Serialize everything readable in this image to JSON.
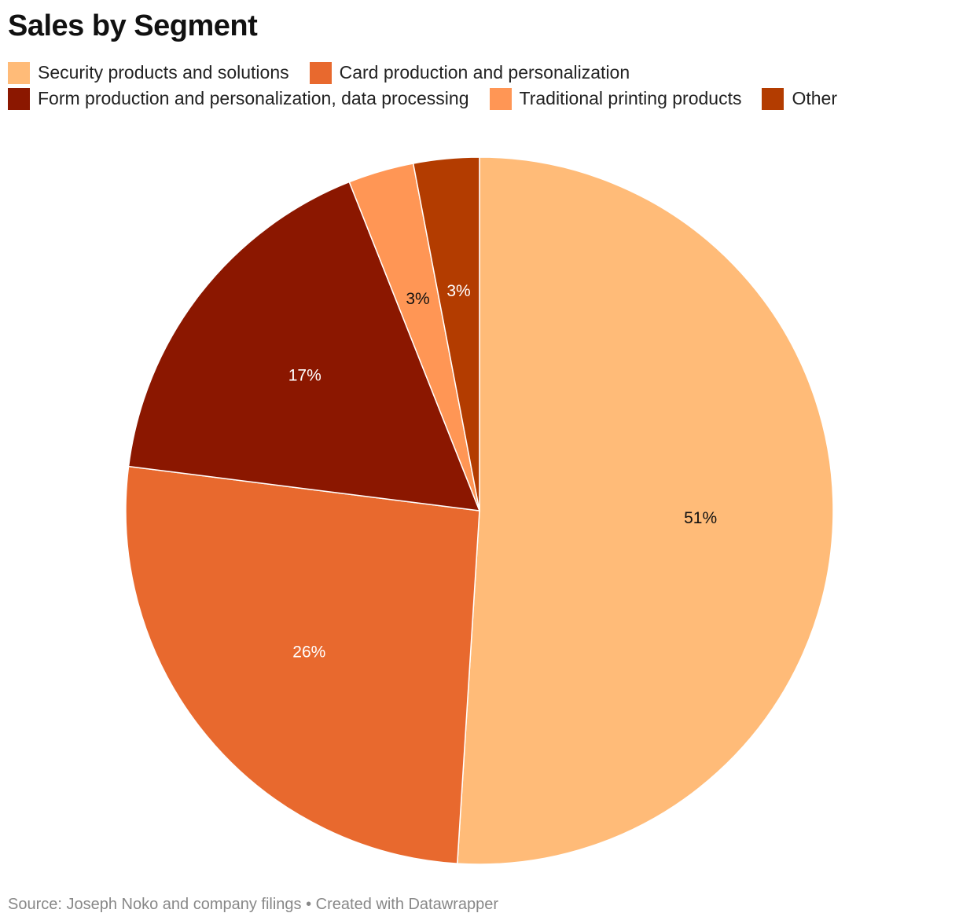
{
  "title": "Sales by Segment",
  "footer": "Source: Joseph Noko and company filings • Created with Datawrapper",
  "chart_data": {
    "type": "pie",
    "title": "Sales by Segment",
    "start": "top",
    "direction": "clockwise",
    "legend_position": "top",
    "slices": [
      {
        "label": "Security products and solutions",
        "value": 51,
        "display": "51%",
        "color": "#FFBB78",
        "text_color": "#111111"
      },
      {
        "label": "Card production and personalization",
        "value": 26,
        "display": "26%",
        "color": "#E8692E",
        "text_color": "#FFFFFF"
      },
      {
        "label": "Form production and personalization, data processing",
        "value": 17,
        "display": "17%",
        "color": "#8B1700",
        "text_color": "#FFFFFF"
      },
      {
        "label": "Traditional printing products",
        "value": 3,
        "display": "3%",
        "color": "#FF9655",
        "text_color": "#111111"
      },
      {
        "label": "Other",
        "value": 3,
        "display": "3%",
        "color": "#B33C00",
        "text_color": "#FFFFFF"
      }
    ]
  }
}
